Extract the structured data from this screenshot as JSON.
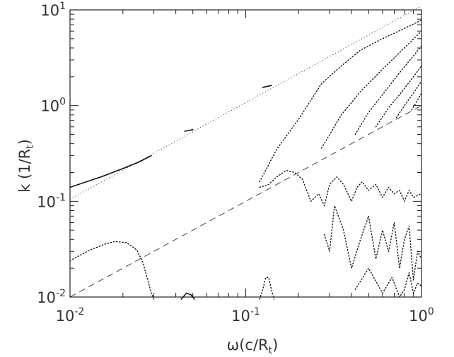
{
  "chart_data": {
    "type": "scatter",
    "title": "",
    "xlabel": {
      "main": "ω(c/R",
      "sub": "t",
      "close": ")"
    },
    "ylabel": {
      "main": "k (1/R",
      "sub": "t",
      "close": ")"
    },
    "x_scale": "log",
    "y_scale": "log",
    "xlim": [
      0.01,
      1
    ],
    "ylim": [
      0.01,
      10
    ],
    "grid": false,
    "x_ticks": [
      {
        "value": 0.01,
        "base": "10",
        "exp": "-2"
      },
      {
        "value": 0.1,
        "base": "10",
        "exp": "-1"
      },
      {
        "value": 1,
        "base": "10",
        "exp": "0"
      }
    ],
    "y_ticks": [
      {
        "value": 0.01,
        "base": "10",
        "exp": "-2"
      },
      {
        "value": 0.1,
        "base": "10",
        "exp": "-1"
      },
      {
        "value": 1,
        "base": "10",
        "exp": "0"
      },
      {
        "value": 10,
        "base": "10",
        "exp": "1"
      }
    ],
    "reference_lines": [
      {
        "style": "dotted",
        "x": [
          0.01,
          1
        ],
        "y": [
          0.105,
          11.0
        ]
      },
      {
        "style": "dashed",
        "x": [
          0.01,
          1
        ],
        "y": [
          0.01,
          1.0
        ]
      }
    ],
    "series": [
      {
        "style": "solid",
        "x": [
          0.01,
          0.015,
          0.02,
          0.025,
          0.029
        ],
        "y": [
          0.14,
          0.18,
          0.22,
          0.26,
          0.3
        ]
      },
      {
        "style": "dotted",
        "x": [
          0.01,
          0.013,
          0.016,
          0.018,
          0.021,
          0.024,
          0.026,
          0.028,
          0.029,
          0.03
        ],
        "y": [
          0.024,
          0.031,
          0.036,
          0.038,
          0.037,
          0.031,
          0.023,
          0.014,
          0.011,
          0.0095
        ]
      },
      {
        "style": "solid",
        "x": [
          0.045,
          0.05
        ],
        "y": [
          0.54,
          0.56
        ]
      },
      {
        "style": "solid",
        "x": [
          0.043,
          0.046,
          0.049,
          0.051
        ],
        "y": [
          0.0095,
          0.011,
          0.0105,
          0.0095
        ]
      },
      {
        "style": "solid",
        "x": [
          0.125,
          0.14
        ],
        "y": [
          1.55,
          1.62
        ]
      },
      {
        "style": "dotted",
        "x": [
          0.12,
          0.125,
          0.13,
          0.135,
          0.14,
          0.145
        ],
        "y": [
          0.0095,
          0.012,
          0.016,
          0.016,
          0.012,
          0.0095
        ]
      },
      {
        "style": "dotted",
        "x": [
          0.12,
          0.15,
          0.2,
          0.27,
          0.35,
          0.45,
          0.6,
          0.8,
          1.0
        ],
        "y": [
          0.16,
          0.35,
          0.72,
          1.7,
          2.6,
          3.8,
          5.0,
          6.4,
          7.8
        ]
      },
      {
        "style": "dotted",
        "x": [
          0.27,
          0.35,
          0.45,
          0.6,
          0.8,
          1.0
        ],
        "y": [
          0.36,
          0.8,
          1.4,
          2.4,
          4.0,
          6.0
        ]
      },
      {
        "style": "dotted",
        "x": [
          0.42,
          0.5,
          0.6,
          0.75,
          0.9,
          1.0
        ],
        "y": [
          0.5,
          0.85,
          1.3,
          2.2,
          3.3,
          4.2
        ]
      },
      {
        "style": "dotted",
        "x": [
          0.55,
          0.65,
          0.75,
          0.9,
          1.0
        ],
        "y": [
          0.6,
          0.95,
          1.3,
          2.0,
          2.6
        ]
      },
      {
        "style": "dotted",
        "x": [
          0.72,
          0.8,
          0.9,
          1.0
        ],
        "y": [
          0.75,
          1.0,
          1.35,
          1.8
        ]
      },
      {
        "style": "dotted",
        "x": [
          0.88,
          0.94,
          1.0
        ],
        "y": [
          0.9,
          1.1,
          1.35
        ]
      },
      {
        "style": "dotted",
        "x": [
          0.12,
          0.135,
          0.15,
          0.17,
          0.19,
          0.21,
          0.235,
          0.26,
          0.28,
          0.3,
          0.33,
          0.36,
          0.4,
          0.43,
          0.46,
          0.5,
          0.55,
          0.6,
          0.65,
          0.7,
          0.75,
          0.8,
          0.85,
          0.9,
          1.0
        ],
        "y": [
          0.14,
          0.15,
          0.18,
          0.21,
          0.2,
          0.17,
          0.1,
          0.12,
          0.09,
          0.15,
          0.18,
          0.15,
          0.1,
          0.14,
          0.16,
          0.13,
          0.15,
          0.11,
          0.14,
          0.12,
          0.13,
          0.1,
          0.13,
          0.11,
          0.12
        ]
      },
      {
        "style": "dotted",
        "x": [
          0.28,
          0.3,
          0.32,
          0.36,
          0.4,
          0.45,
          0.5,
          0.55,
          0.6,
          0.65,
          0.7,
          0.75,
          0.8,
          0.85,
          0.9,
          0.95,
          1.0
        ],
        "y": [
          0.045,
          0.03,
          0.09,
          0.05,
          0.02,
          0.04,
          0.07,
          0.025,
          0.05,
          0.03,
          0.06,
          0.02,
          0.04,
          0.055,
          0.015,
          0.03,
          0.025
        ]
      },
      {
        "style": "dotted",
        "x": [
          0.42,
          0.5,
          0.6,
          0.68,
          0.75,
          0.8,
          0.85,
          0.9,
          0.95,
          1.0
        ],
        "y": [
          0.012,
          0.02,
          0.011,
          0.016,
          0.01,
          0.012,
          0.018,
          0.011,
          0.014,
          0.013
        ]
      }
    ]
  }
}
